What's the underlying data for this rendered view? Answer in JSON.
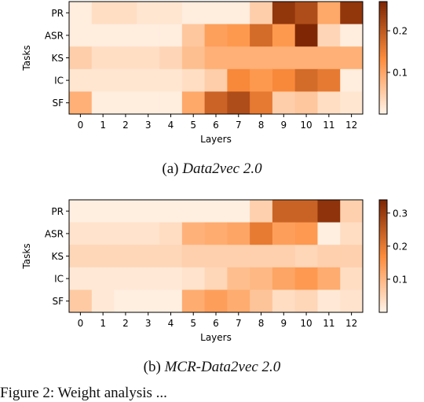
{
  "colors": {
    "low": "#fff5eb",
    "mid": "#fd8d3c",
    "high": "#7f2704"
  },
  "captions": [
    {
      "prefix": "(a) ",
      "name": "Data2vec 2.0"
    },
    {
      "prefix": "(b) ",
      "name": "MCR-Data2vec 2.0"
    }
  ],
  "figure_caption": "Figure 2: Weight analysis ...",
  "chart_data": [
    {
      "type": "heatmap",
      "title": "",
      "xlabel": "Layers",
      "ylabel": "Tasks",
      "x": [
        "0",
        "1",
        "2",
        "3",
        "4",
        "5",
        "6",
        "7",
        "8",
        "9",
        "10",
        "11",
        "12"
      ],
      "y": [
        "PR",
        "ASR",
        "KS",
        "IC",
        "SF"
      ],
      "colorbar": {
        "ticks": [
          0.1,
          0.2
        ],
        "range": [
          0.0,
          0.27
        ]
      },
      "values": [
        [
          0.01,
          0.03,
          0.03,
          0.02,
          0.02,
          0.01,
          0.01,
          0.01,
          0.05,
          0.25,
          0.22,
          0.1,
          0.25
        ],
        [
          0.01,
          0.01,
          0.01,
          0.01,
          0.01,
          0.06,
          0.11,
          0.12,
          0.18,
          0.12,
          0.27,
          0.04,
          0.01
        ],
        [
          0.05,
          0.03,
          0.03,
          0.03,
          0.04,
          0.07,
          0.09,
          0.09,
          0.09,
          0.09,
          0.09,
          0.09,
          0.09
        ],
        [
          0.02,
          0.02,
          0.02,
          0.02,
          0.02,
          0.03,
          0.05,
          0.14,
          0.12,
          0.14,
          0.18,
          0.16,
          0.01
        ],
        [
          0.09,
          0.01,
          0.01,
          0.01,
          0.01,
          0.1,
          0.19,
          0.22,
          0.16,
          0.05,
          0.06,
          0.03,
          0.02
        ]
      ]
    },
    {
      "type": "heatmap",
      "title": "",
      "xlabel": "Layers",
      "ylabel": "Tasks",
      "x": [
        "0",
        "1",
        "2",
        "3",
        "4",
        "5",
        "6",
        "7",
        "8",
        "9",
        "10",
        "11",
        "12"
      ],
      "y": [
        "PR",
        "ASR",
        "KS",
        "IC",
        "SF"
      ],
      "colorbar": {
        "ticks": [
          0.1,
          0.2,
          0.3
        ],
        "range": [
          0.0,
          0.34
        ]
      },
      "values": [
        [
          0.01,
          0.01,
          0.01,
          0.01,
          0.01,
          0.01,
          0.01,
          0.01,
          0.06,
          0.24,
          0.24,
          0.32,
          0.06
        ],
        [
          0.03,
          0.03,
          0.03,
          0.03,
          0.04,
          0.11,
          0.12,
          0.13,
          0.2,
          0.14,
          0.15,
          0.01,
          0.04
        ],
        [
          0.05,
          0.05,
          0.05,
          0.05,
          0.05,
          0.06,
          0.06,
          0.06,
          0.06,
          0.06,
          0.05,
          0.06,
          0.06
        ],
        [
          0.02,
          0.02,
          0.02,
          0.02,
          0.02,
          0.03,
          0.05,
          0.09,
          0.1,
          0.13,
          0.15,
          0.12,
          0.04
        ],
        [
          0.07,
          0.02,
          0.01,
          0.01,
          0.01,
          0.12,
          0.14,
          0.12,
          0.08,
          0.04,
          0.05,
          0.02,
          0.03
        ]
      ]
    }
  ]
}
